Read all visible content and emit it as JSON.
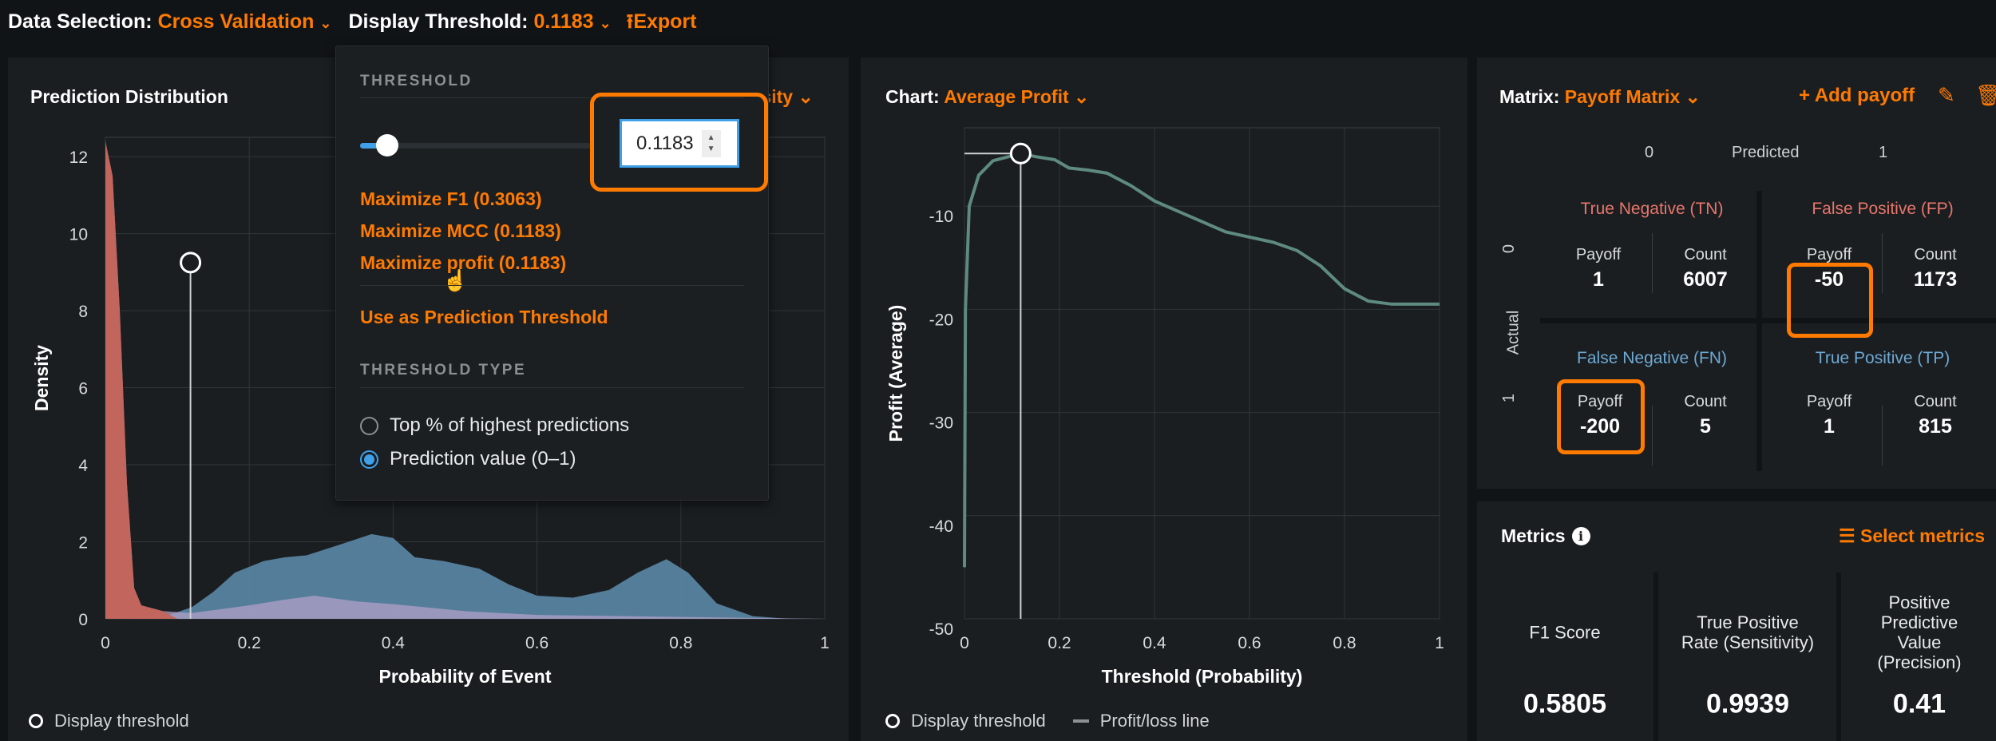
{
  "toolbar": {
    "data_selection_label": "Data Selection:",
    "data_selection_value": "Cross Validation",
    "display_threshold_label": "Display Threshold:",
    "display_threshold_value": "0.1183",
    "export_label": "Export"
  },
  "distribution": {
    "title": "Prediction Distribution",
    "mode_dropdown": "Density",
    "legend_threshold": "Display threshold",
    "colors": {
      "negative": "#c4645a",
      "positive": "#5b87a6",
      "overlap": "#9a98b9"
    }
  },
  "popup": {
    "threshold_header": "THRESHOLD",
    "threshold_value": "0.1183",
    "slider_fraction": 0.1183,
    "maximize_f1": "Maximize F1 (0.3063)",
    "maximize_mcc": "Maximize MCC (0.1183)",
    "maximize_profit": "Maximize profit (0.1183)",
    "use_as_prediction": "Use as Prediction Threshold",
    "threshold_type_header": "THRESHOLD TYPE",
    "options": [
      {
        "label": "Top % of highest predictions",
        "selected": false
      },
      {
        "label": "Prediction value (0–1)",
        "selected": true
      }
    ]
  },
  "profit_chart": {
    "chart_label": "Chart:",
    "chart_value": "Average Profit",
    "legend_threshold": "Display threshold",
    "legend_line": "Profit/loss line"
  },
  "matrix": {
    "label": "Matrix:",
    "value": "Payoff Matrix",
    "add_payoff": "Add payoff",
    "predicted_label": "Predicted",
    "actual_label": "Actual",
    "class0": "0",
    "class1": "1",
    "payoff_label": "Payoff",
    "count_label": "Count",
    "cells": {
      "tn": {
        "title": "True Negative (TN)",
        "payoff": "1",
        "count": "6007"
      },
      "fp": {
        "title": "False Positive (FP)",
        "payoff": "-50",
        "count": "1173"
      },
      "fn": {
        "title": "False Negative (FN)",
        "payoff": "-200",
        "count": "5"
      },
      "tp": {
        "title": "True Positive (TP)",
        "payoff": "1",
        "count": "815"
      }
    }
  },
  "metrics": {
    "title": "Metrics",
    "select_metrics": "Select metrics",
    "items": [
      {
        "label": "F1 Score",
        "value": "0.5805"
      },
      {
        "label": "True Positive Rate (Sensitivity)",
        "value": "0.9939"
      },
      {
        "label": "Positive Predictive Value (Precision)",
        "value": "0.41"
      }
    ]
  },
  "chart_data": [
    {
      "type": "area",
      "xlabel": "Probability of Event",
      "ylabel": "Density",
      "xlim": [
        0,
        1
      ],
      "ylim": [
        0,
        12.5
      ],
      "xticks": [
        "0",
        "0.2",
        "0.4",
        "0.6",
        "0.8",
        "1"
      ],
      "yticks": [
        "0",
        "2",
        "4",
        "6",
        "8",
        "10",
        "12"
      ],
      "grid": true,
      "threshold": 0.1183,
      "series": [
        {
          "x": [
            0,
            0.01,
            0.02,
            0.03,
            0.04,
            0.05,
            0.08,
            0.12,
            0.2,
            0.25,
            0.29,
            0.35,
            0.4,
            0.5,
            0.6,
            0.8,
            1
          ],
          "y": [
            12.4,
            11.5,
            8,
            3.5,
            0.8,
            0.35,
            0.2,
            0.15,
            0.35,
            0.5,
            0.6,
            0.45,
            0.38,
            0.2,
            0.1,
            0.05,
            0
          ]
        },
        {
          "x": [
            0,
            0.08,
            0.12,
            0.15,
            0.18,
            0.22,
            0.25,
            0.28,
            0.33,
            0.37,
            0.4,
            0.43,
            0.47,
            0.52,
            0.56,
            0.6,
            0.65,
            0.7,
            0.74,
            0.78,
            0.81,
            0.85,
            0.9,
            0.95,
            1
          ],
          "y": [
            0,
            0.05,
            0.3,
            0.7,
            1.2,
            1.5,
            1.6,
            1.65,
            1.95,
            2.2,
            2.1,
            1.6,
            1.5,
            1.3,
            0.9,
            0.6,
            0.55,
            0.75,
            1.2,
            1.55,
            1.2,
            0.4,
            0.07,
            0,
            0
          ]
        }
      ]
    },
    {
      "type": "line",
      "xlabel": "Threshold (Probability)",
      "ylabel": "Profit (Average)",
      "xlim": [
        0,
        1
      ],
      "ylim": [
        -50,
        -2.4
      ],
      "xticks": [
        "0",
        "0.2",
        "0.4",
        "0.6",
        "0.8",
        "1"
      ],
      "yticks": [
        "-10",
        "-20",
        "-30",
        "-40",
        "-50"
      ],
      "grid": true,
      "threshold": 0.1183,
      "threshold_value": -4.9,
      "color": "#5e8a80",
      "x": [
        0,
        0.002,
        0.01,
        0.03,
        0.06,
        0.118,
        0.15,
        0.19,
        0.22,
        0.26,
        0.3,
        0.35,
        0.4,
        0.45,
        0.5,
        0.55,
        0.6,
        0.65,
        0.7,
        0.75,
        0.8,
        0.85,
        0.9,
        1
      ],
      "y": [
        -45,
        -20,
        -10,
        -7,
        -5.6,
        -4.9,
        -5.2,
        -5.5,
        -6.3,
        -6.5,
        -6.8,
        -8,
        -9.5,
        -10.5,
        -11.5,
        -12.5,
        -13,
        -13.5,
        -14.3,
        -15.8,
        -18,
        -19.2,
        -19.5,
        -19.5
      ]
    }
  ]
}
